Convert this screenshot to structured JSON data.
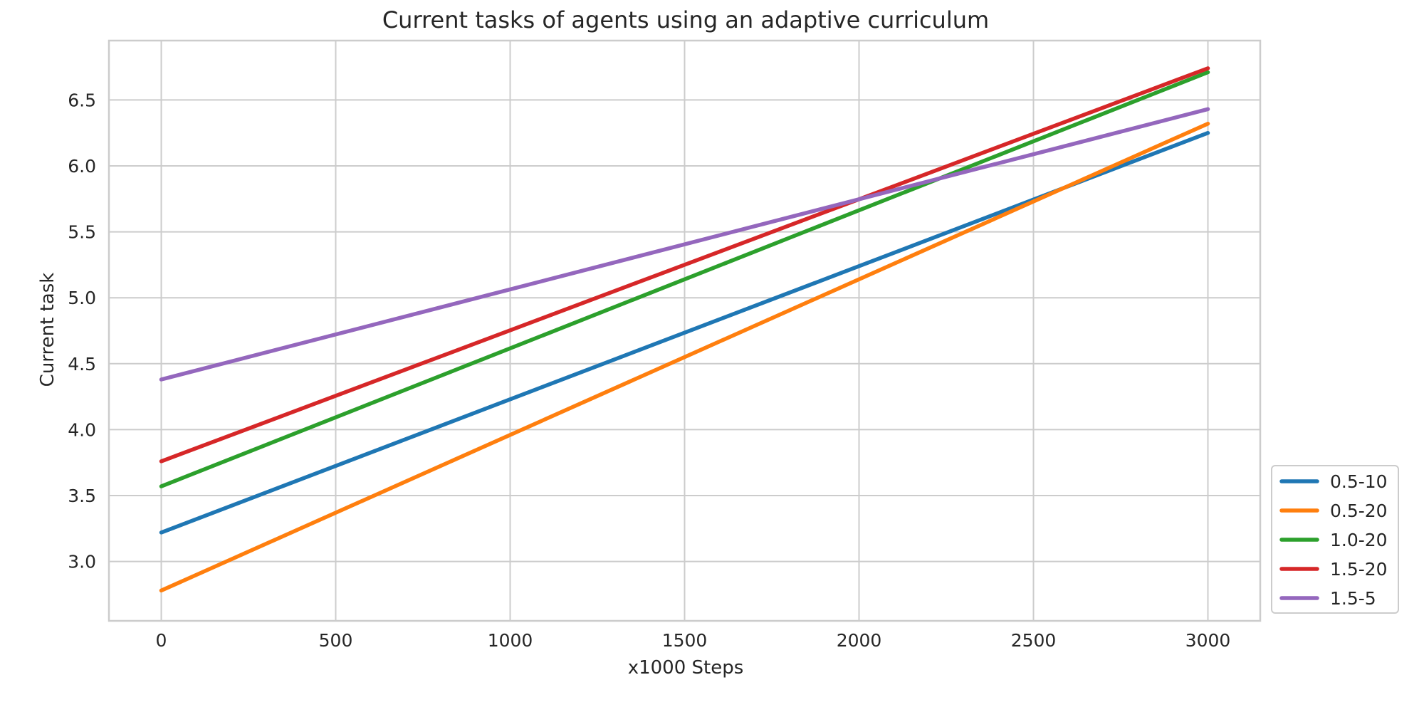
{
  "chart_data": {
    "type": "line",
    "title": "Current tasks of agents using an adaptive curriculum",
    "xlabel": "x1000 Steps",
    "ylabel": "Current task",
    "xlim": [
      -150,
      3150
    ],
    "ylim": [
      2.55,
      6.95
    ],
    "xticks": [
      0,
      500,
      1000,
      1500,
      2000,
      2500,
      3000
    ],
    "yticks": [
      3.0,
      3.5,
      4.0,
      4.5,
      5.0,
      5.5,
      6.0,
      6.5
    ],
    "grid": true,
    "legend_position": "bottom-right (outside plot)",
    "x": [
      0,
      3000
    ],
    "series": [
      {
        "name": "0.5-10",
        "color": "#1f77b4",
        "values": [
          3.22,
          6.25
        ]
      },
      {
        "name": "0.5-20",
        "color": "#ff7f0e",
        "values": [
          2.78,
          6.32
        ]
      },
      {
        "name": "1.0-20",
        "color": "#2ca02c",
        "values": [
          3.57,
          6.71
        ]
      },
      {
        "name": "1.5-20",
        "color": "#d62728",
        "values": [
          3.76,
          6.74
        ]
      },
      {
        "name": "1.5-5",
        "color": "#9467bd",
        "values": [
          4.38,
          6.43
        ]
      }
    ]
  }
}
